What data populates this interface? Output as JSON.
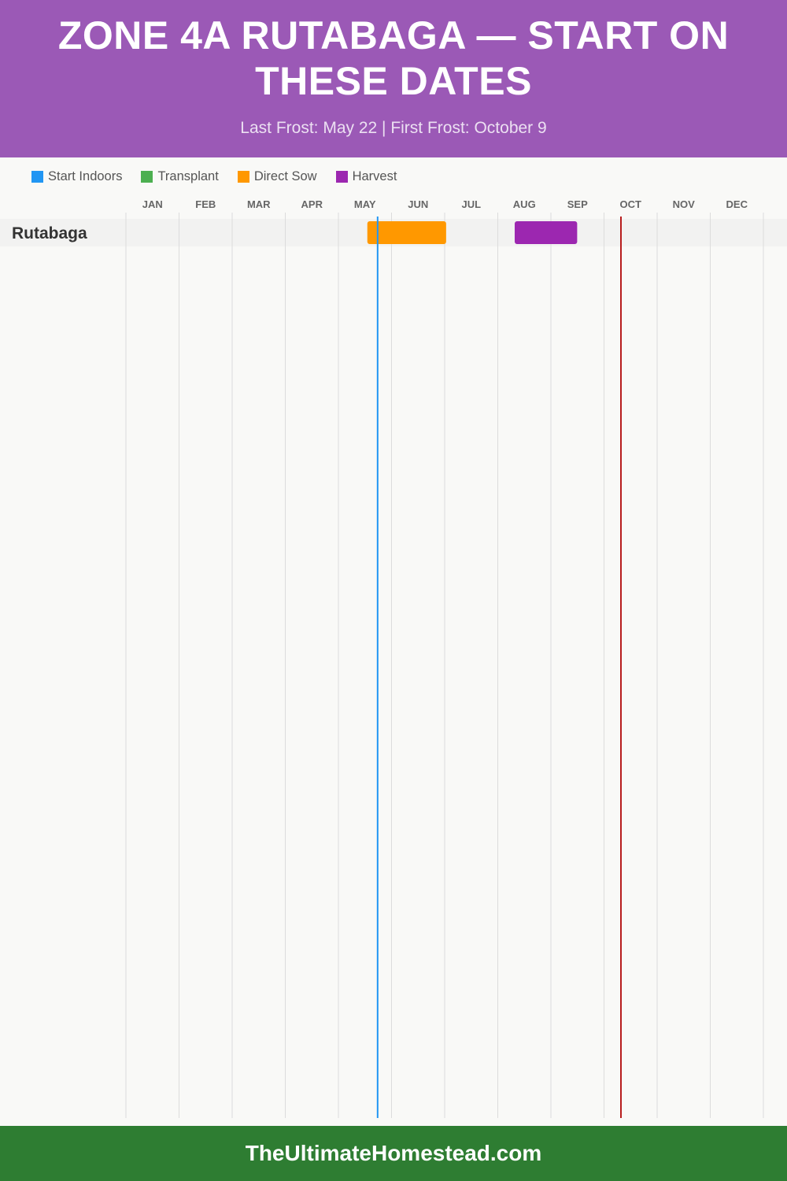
{
  "header": {
    "title": "Zone 4a Rutabaga — Start on These Dates",
    "subtitle": "Last Frost: May 22 | First Frost: October 9"
  },
  "colors": {
    "header_bg": "#9b59b6",
    "footer_bg": "#2e7d32",
    "start_indoors": "#2196f3",
    "transplant": "#4caf50",
    "direct_sow": "#ff9800",
    "harvest": "#9c27b0",
    "last_frost_line": "#2196f3",
    "first_frost_line": "#b71c1c"
  },
  "chart_data": {
    "type": "gantt",
    "title": "Zone 4a Rutabaga — Start on These Dates",
    "subtitle": "Last Frost: May 22 | First Frost: October 9",
    "legend": [
      {
        "label": "Start Indoors",
        "color": "#2196f3"
      },
      {
        "label": "Transplant",
        "color": "#4caf50"
      },
      {
        "label": "Direct Sow",
        "color": "#ff9800"
      },
      {
        "label": "Harvest",
        "color": "#9c27b0"
      }
    ],
    "legend_position": "top-left",
    "months": [
      "JAN",
      "FEB",
      "MAR",
      "APR",
      "MAY",
      "JUN",
      "JUL",
      "AUG",
      "SEP",
      "OCT",
      "NOV",
      "DEC"
    ],
    "grid": true,
    "rows": [
      {
        "crop": "Rutabaga",
        "tasks": [
          {
            "type": "Direct Sow",
            "start": "05-16",
            "end": "06-30",
            "color": "#ff9800"
          },
          {
            "type": "Harvest",
            "start": "08-09",
            "end": "09-14",
            "color": "#9c27b0"
          }
        ]
      }
    ],
    "markers": [
      {
        "label": "Last Frost",
        "date": "05-22",
        "color": "#2196f3"
      },
      {
        "label": "First Frost",
        "date": "10-09",
        "color": "#b71c1c"
      }
    ]
  },
  "footer": {
    "text": "TheUltimateHomestead.com"
  }
}
